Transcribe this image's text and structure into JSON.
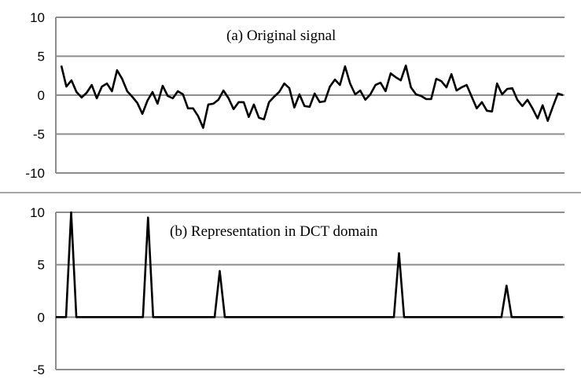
{
  "chart_data": [
    {
      "type": "line",
      "title": "(a) Original signal",
      "xlabel": "",
      "ylabel": "",
      "ylim": [
        -10,
        10
      ],
      "yticks": [
        10,
        5,
        0,
        -5,
        -10
      ],
      "grid": true,
      "legend": "none",
      "line_color": "#000000",
      "grid_color": "#8c8c8c",
      "series": [
        {
          "values": [
            3.8,
            1.1,
            1.9,
            0.4,
            -0.3,
            0.3,
            1.3,
            -0.4,
            1.1,
            1.5,
            0.5,
            3.2,
            2.1,
            0.5,
            -0.2,
            -1.0,
            -2.4,
            -0.7,
            0.4,
            -1.1,
            1.2,
            -0.1,
            -0.4,
            0.5,
            0.1,
            -1.7,
            -1.7,
            -2.7,
            -4.2,
            -1.2,
            -1.1,
            -0.6,
            0.6,
            -0.4,
            -1.8,
            -0.9,
            -0.9,
            -2.8,
            -1.2,
            -2.9,
            -3.1,
            -0.9,
            -0.2,
            0.4,
            1.5,
            0.9,
            -1.6,
            0.1,
            -1.4,
            -1.5,
            0.2,
            -0.9,
            -0.8,
            1.1,
            2.0,
            1.3,
            3.7,
            1.5,
            0.1,
            0.6,
            -0.6,
            0.1,
            1.3,
            1.6,
            0.5,
            2.8,
            2.3,
            1.9,
            3.8,
            1.0,
            0.1,
            -0.1,
            -0.5,
            -0.5,
            2.1,
            1.8,
            1.0,
            2.7,
            0.6,
            1.0,
            1.3,
            -0.2,
            -1.7,
            -0.9,
            -2.0,
            -2.1,
            1.5,
            0.1,
            0.8,
            0.9,
            -0.6,
            -1.4,
            -0.6,
            -1.7,
            -3.0,
            -1.3,
            -3.3,
            -1.5,
            0.2,
            0.0
          ]
        }
      ]
    },
    {
      "type": "line",
      "title": "(b) Representation in DCT domain",
      "xlabel": "",
      "ylabel": "",
      "ylim": [
        -5,
        10
      ],
      "yticks": [
        10,
        5,
        0,
        -5
      ],
      "grid": true,
      "legend": "none",
      "line_color": "#000000",
      "grid_color": "#8c8c8c",
      "series": [
        {
          "length": 100,
          "spikes": [
            {
              "index": 3,
              "value": 10.0
            },
            {
              "index": 18,
              "value": 9.5
            },
            {
              "index": 32,
              "value": 4.4
            },
            {
              "index": 67,
              "value": 6.1
            },
            {
              "index": 88,
              "value": 3.0
            }
          ]
        }
      ]
    }
  ]
}
